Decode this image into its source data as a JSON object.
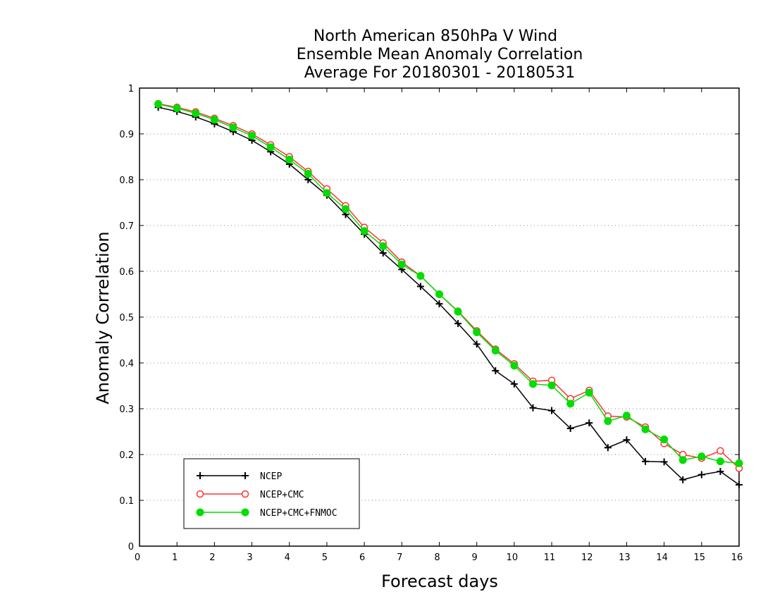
{
  "chart_data": {
    "type": "line",
    "title_lines": [
      "North American 850hPa V Wind",
      "Ensemble Mean Anomaly Correlation",
      "Average For 20180301 - 20180531"
    ],
    "xlabel": "Forecast days",
    "ylabel": "Anomaly Correlation",
    "xlim": [
      0,
      16
    ],
    "ylim": [
      0,
      1
    ],
    "xticks": [
      0,
      1,
      2,
      3,
      4,
      5,
      6,
      7,
      8,
      9,
      10,
      11,
      12,
      13,
      14,
      15,
      16
    ],
    "yticks": [
      0,
      0.1,
      0.2,
      0.3,
      0.4,
      0.5,
      0.6,
      0.7,
      0.8,
      0.9,
      1
    ],
    "ytick_labels": [
      "0",
      "0.1",
      "0.2",
      "0.3",
      "0.4",
      "0.5",
      "0.6",
      "0.7",
      "0.8",
      "0.9",
      "1"
    ],
    "grid": "horizontal dotted",
    "legend_position": "bottom-left",
    "x": [
      0.5,
      1,
      1.5,
      2,
      2.5,
      3,
      3.5,
      4,
      4.5,
      5,
      5.5,
      6,
      6.5,
      7,
      7.5,
      8,
      8.5,
      9,
      9.5,
      10,
      10.5,
      11,
      11.5,
      12,
      12.5,
      13,
      13.5,
      14,
      14.5,
      15,
      15.5,
      16
    ],
    "series": [
      {
        "name": "NCEP",
        "color": "#000000",
        "marker": "plus",
        "values": [
          0.958,
          0.949,
          0.937,
          0.922,
          0.905,
          0.886,
          0.861,
          0.834,
          0.8,
          0.766,
          0.724,
          0.681,
          0.64,
          0.604,
          0.567,
          0.529,
          0.486,
          0.441,
          0.383,
          0.354,
          0.302,
          0.296,
          0.257,
          0.269,
          0.215,
          0.232,
          0.185,
          0.184,
          0.145,
          0.156,
          0.163,
          0.134
        ]
      },
      {
        "name": "NCEP+CMC",
        "color": "#ff3333",
        "marker": "open-circle",
        "values": [
          0.966,
          0.958,
          0.948,
          0.934,
          0.918,
          0.9,
          0.876,
          0.85,
          0.818,
          0.78,
          0.743,
          0.696,
          0.662,
          0.62,
          0.59,
          0.55,
          0.513,
          0.47,
          0.43,
          0.398,
          0.36,
          0.362,
          0.322,
          0.34,
          0.284,
          0.282,
          0.26,
          0.224,
          0.2,
          0.192,
          0.208,
          0.17
        ]
      },
      {
        "name": "NCEP+CMC+FNMOC",
        "color": "#00dd00",
        "marker": "filled-circle",
        "values": [
          0.965,
          0.956,
          0.945,
          0.931,
          0.914,
          0.896,
          0.871,
          0.844,
          0.813,
          0.771,
          0.736,
          0.688,
          0.655,
          0.615,
          0.59,
          0.55,
          0.512,
          0.467,
          0.427,
          0.394,
          0.354,
          0.351,
          0.311,
          0.335,
          0.273,
          0.285,
          0.255,
          0.233,
          0.188,
          0.196,
          0.185,
          0.181
        ]
      }
    ]
  }
}
